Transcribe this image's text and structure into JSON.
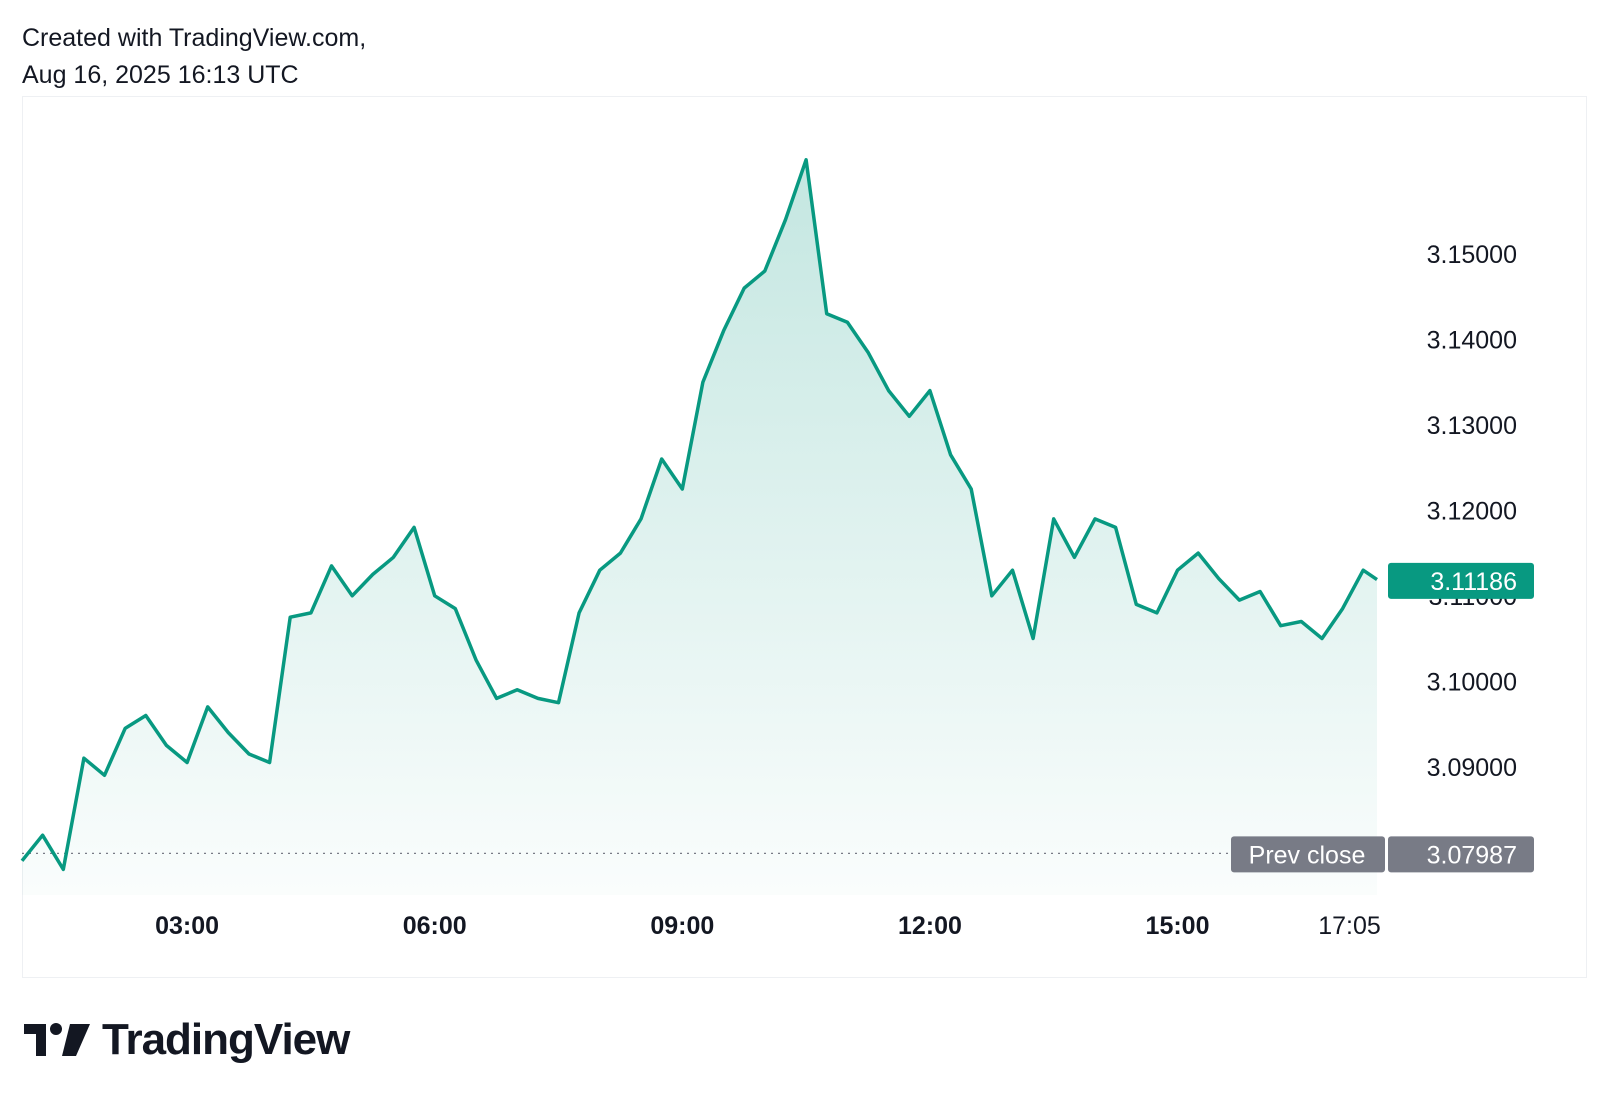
{
  "header": {
    "line1": "Created with TradingView.com,",
    "line2": "Aug 16, 2025 16:13 UTC"
  },
  "brand": {
    "name": "TradingView",
    "logo_icon": "tradingview-logo-icon"
  },
  "colors": {
    "line": "#089981",
    "fill_top": "#c7e8df",
    "badge_last": "#089981",
    "badge_prev": "#787b86",
    "text": "#131722"
  },
  "chart_data": {
    "type": "area",
    "title": "",
    "xlabel": "",
    "ylabel": "",
    "x_ticks": [
      "03:00",
      "06:00",
      "09:00",
      "12:00",
      "15:00",
      "17:05"
    ],
    "y_ticks": [
      "3.09000",
      "3.10000",
      "3.11000",
      "3.12000",
      "3.13000",
      "3.14000",
      "3.15000"
    ],
    "xlim": [
      "01:00",
      "17:25"
    ],
    "ylim": [
      3.075,
      3.168
    ],
    "last_value": 3.11186,
    "last_value_label": "3.11186",
    "prev_close": 3.07987,
    "prev_close_label": "Prev close",
    "prev_close_value_label": "3.07987",
    "grid": false,
    "series": [
      {
        "x": [
          "01:00",
          "01:15",
          "01:30",
          "01:45",
          "02:00",
          "02:15",
          "02:30",
          "02:45",
          "03:00",
          "03:15",
          "03:30",
          "03:45",
          "04:00",
          "04:15",
          "04:30",
          "04:45",
          "05:00",
          "05:15",
          "05:30",
          "05:45",
          "06:00",
          "06:15",
          "06:30",
          "06:45",
          "07:00",
          "07:15",
          "07:30",
          "07:45",
          "08:00",
          "08:15",
          "08:30",
          "08:45",
          "09:00",
          "09:15",
          "09:30",
          "09:45",
          "10:00",
          "10:15",
          "10:30",
          "10:45",
          "11:00",
          "11:15",
          "11:30",
          "11:45",
          "12:00",
          "12:15",
          "12:30",
          "12:45",
          "13:00",
          "13:15",
          "13:30",
          "13:45",
          "14:00",
          "14:15",
          "14:30",
          "14:45",
          "15:00",
          "15:15",
          "15:30",
          "15:45",
          "16:00",
          "16:15",
          "16:30",
          "16:45",
          "17:00",
          "17:15",
          "17:25"
        ],
        "values": [
          3.079,
          3.082,
          3.078,
          3.091,
          3.089,
          3.0945,
          3.096,
          3.0925,
          3.0905,
          3.097,
          3.094,
          3.0915,
          3.0905,
          3.1075,
          3.108,
          3.1135,
          3.11,
          3.1125,
          3.1145,
          3.118,
          3.11,
          3.1085,
          3.1025,
          3.098,
          3.099,
          3.098,
          3.0975,
          3.108,
          3.113,
          3.115,
          3.119,
          3.126,
          3.1225,
          3.135,
          3.141,
          3.146,
          3.148,
          3.154,
          3.161,
          3.143,
          3.142,
          3.1385,
          3.134,
          3.131,
          3.134,
          3.1265,
          3.1225,
          3.11,
          3.113,
          3.105,
          3.119,
          3.1145,
          3.119,
          3.118,
          3.109,
          3.108,
          3.113,
          3.115,
          3.112,
          3.1095,
          3.1105,
          3.1065,
          3.107,
          3.105,
          3.1085,
          3.113,
          3.1119
        ]
      }
    ]
  }
}
